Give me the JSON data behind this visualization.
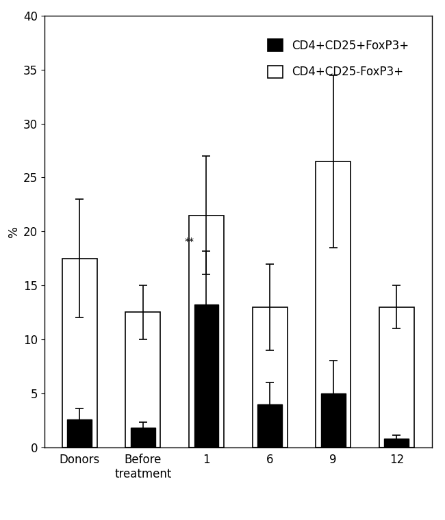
{
  "categories": [
    "Donors",
    "Before\ntreatment",
    "1",
    "6",
    "9",
    "12"
  ],
  "black_values": [
    2.6,
    1.8,
    13.2,
    4.0,
    5.0,
    0.8
  ],
  "black_errors": [
    1.0,
    0.5,
    5.0,
    2.0,
    3.0,
    0.3
  ],
  "white_values": [
    17.5,
    12.5,
    21.5,
    13.0,
    26.5,
    13.0
  ],
  "white_errors": [
    5.5,
    2.5,
    5.5,
    4.0,
    8.0,
    2.0
  ],
  "ylabel": "%",
  "ylim": [
    0,
    40
  ],
  "yticks": [
    0,
    5,
    10,
    15,
    20,
    25,
    30,
    35,
    40
  ],
  "legend_black": "CD4+CD25+FoxP3+",
  "legend_white": "CD4+CD25-FoxP3+",
  "bar_width": 0.55,
  "annotation_text": "**",
  "annotation_group_index": 2,
  "background_color": "#ffffff",
  "bar_edge_color": "#000000",
  "bar_black_color": "#000000",
  "bar_white_color": "#ffffff",
  "capsize": 4,
  "elinewidth": 1.2,
  "ecapthick": 1.2,
  "tick_fontsize": 12,
  "ylabel_fontsize": 13,
  "legend_fontsize": 12
}
